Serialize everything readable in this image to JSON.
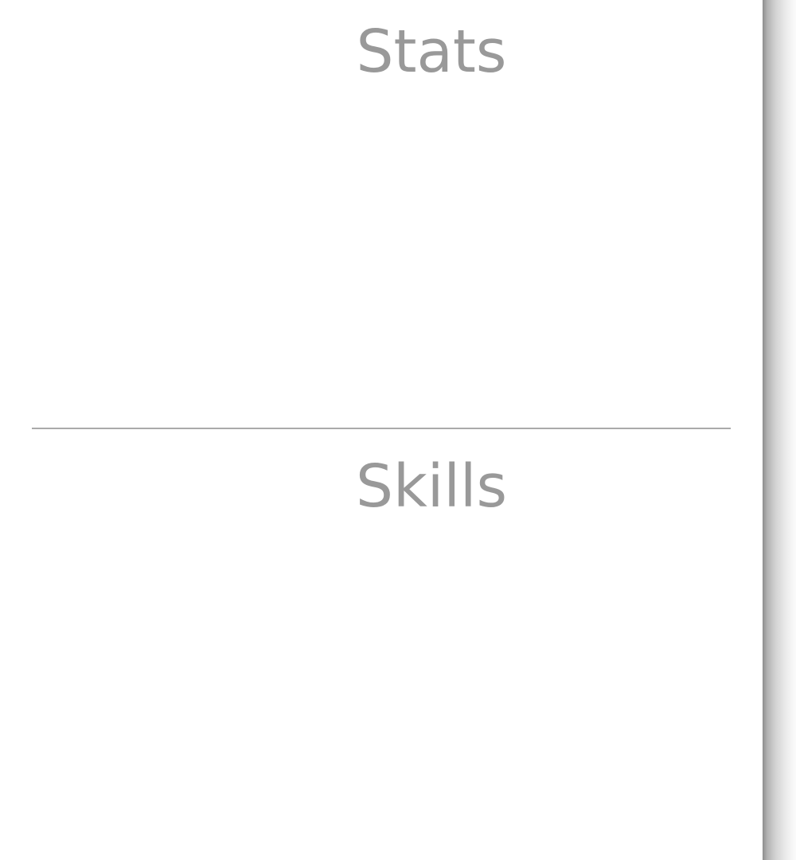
{
  "stats": {
    "title": "Stats"
  },
  "skills": {
    "title": "Skills"
  }
}
